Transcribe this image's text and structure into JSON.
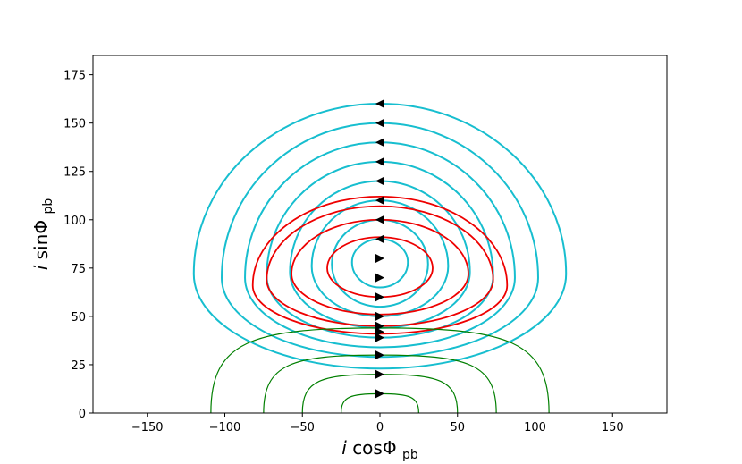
{
  "chart_data": {
    "type": "line",
    "title": "",
    "xlabel": {
      "var": "i",
      "func": "cosΦ",
      "sub": "pb"
    },
    "ylabel": {
      "var": "i",
      "func": "sinΦ",
      "sub": "pb"
    },
    "xlim": [
      -185,
      185
    ],
    "ylim": [
      0,
      185
    ],
    "xticks": [
      -150,
      -100,
      -50,
      0,
      50,
      100,
      150
    ],
    "xtick_labels": [
      "−150",
      "−100",
      "−50",
      "0",
      "50",
      "100",
      "150"
    ],
    "yticks": [
      0,
      25,
      50,
      75,
      100,
      125,
      150,
      175
    ],
    "ytick_labels": [
      "0",
      "25",
      "50",
      "75",
      "100",
      "125",
      "150",
      "175"
    ],
    "grid": false,
    "colors": {
      "cyan": "#17becf",
      "red": "#ee0000",
      "green": "#007f00",
      "arrow": "#000000"
    },
    "cyan_orbits": [
      {
        "y_top": 160,
        "y_bottom": 23,
        "x_half_width": 120,
        "y_widest": 72
      },
      {
        "y_top": 150,
        "y_bottom": 29,
        "x_half_width": 102,
        "y_widest": 70
      },
      {
        "y_top": 140,
        "y_bottom": 34,
        "x_half_width": 87,
        "y_widest": 70
      },
      {
        "y_top": 130,
        "y_bottom": 39,
        "x_half_width": 73,
        "y_widest": 71
      },
      {
        "y_top": 120,
        "y_bottom": 44,
        "x_half_width": 58,
        "y_widest": 73
      },
      {
        "y_top": 110,
        "y_bottom": 50,
        "x_half_width": 44,
        "y_widest": 76
      },
      {
        "y_top": 100,
        "y_bottom": 55,
        "x_half_width": 31,
        "y_widest": 77
      },
      {
        "y_top": 90,
        "y_bottom": 65,
        "x_half_width": 18,
        "y_widest": 78
      }
    ],
    "red_orbits": [
      {
        "y_top": 112,
        "y_bottom": 41,
        "x_half_width": 82,
        "y_widest": 66
      },
      {
        "y_top": 107,
        "y_bottom": 45,
        "x_half_width": 73,
        "y_widest": 69
      },
      {
        "y_top": 100,
        "y_bottom": 51,
        "x_half_width": 57,
        "y_widest": 72
      },
      {
        "y_top": 91,
        "y_bottom": 60,
        "x_half_width": 34,
        "y_widest": 75
      }
    ],
    "green_orbits": [
      {
        "y_top": 44,
        "x_left": -109,
        "x_right": 109
      },
      {
        "y_top": 30,
        "x_left": -75,
        "x_right": 75
      },
      {
        "y_top": 20,
        "x_left": -50,
        "x_right": 50
      },
      {
        "y_top": 10,
        "x_left": -25,
        "x_right": 25
      }
    ],
    "arrows": [
      {
        "y": 160,
        "direction": "left"
      },
      {
        "y": 150,
        "direction": "left"
      },
      {
        "y": 140,
        "direction": "left"
      },
      {
        "y": 130,
        "direction": "left"
      },
      {
        "y": 120,
        "direction": "left"
      },
      {
        "y": 110,
        "direction": "left"
      },
      {
        "y": 100,
        "direction": "left"
      },
      {
        "y": 90,
        "direction": "left"
      },
      {
        "y": 80,
        "direction": "right"
      },
      {
        "y": 70,
        "direction": "right"
      },
      {
        "y": 60,
        "direction": "right"
      },
      {
        "y": 50,
        "direction": "right"
      },
      {
        "y": 45,
        "direction": "right"
      },
      {
        "y": 42,
        "direction": "right"
      },
      {
        "y": 39,
        "direction": "right"
      },
      {
        "y": 30,
        "direction": "right"
      },
      {
        "y": 20,
        "direction": "right"
      },
      {
        "y": 10,
        "direction": "right"
      }
    ]
  }
}
